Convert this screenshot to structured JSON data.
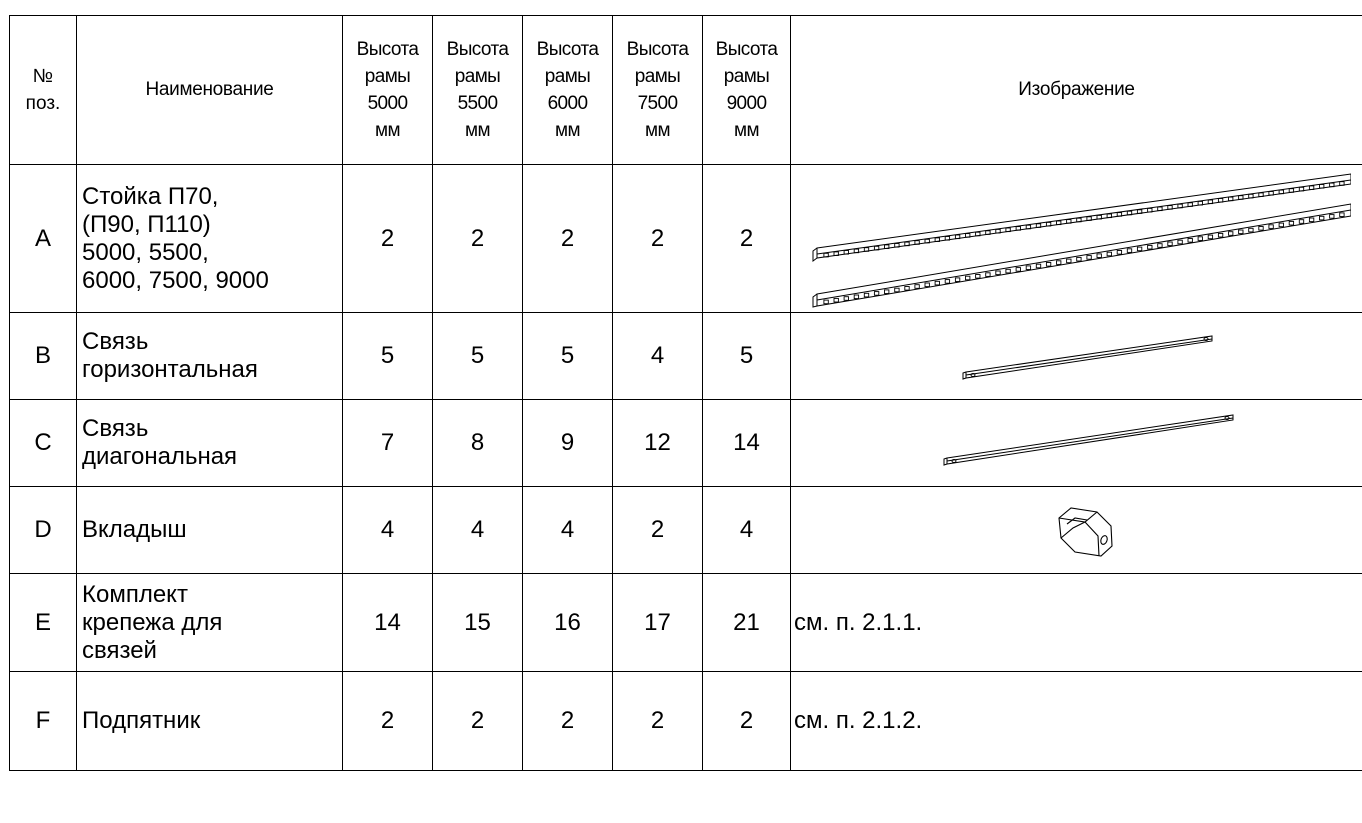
{
  "table": {
    "headers": {
      "pos": [
        "№",
        "поз."
      ],
      "name": "Наименование",
      "heights": [
        [
          "Высота",
          "рамы",
          "5000",
          "мм"
        ],
        [
          "Высота",
          "рамы",
          "5500",
          "мм"
        ],
        [
          "Высота",
          "рамы",
          "6000",
          "мм"
        ],
        [
          "Высота",
          "рамы",
          "7500",
          "мм"
        ],
        [
          "Высота",
          "рамы",
          "9000",
          "мм"
        ]
      ],
      "image": "Изображение"
    },
    "rows": [
      {
        "pos": "A",
        "name_lines": [
          "Стойка П70,",
          "(П90, П110)",
          "5000, 5500,",
          "6000, 7500, 9000"
        ],
        "qty": [
          "2",
          "2",
          "2",
          "2",
          "2"
        ],
        "image_icon": "upright-post-icon",
        "ref": ""
      },
      {
        "pos": "B",
        "name_lines": [
          "Связь",
          "горизонтальная"
        ],
        "qty": [
          "5",
          "5",
          "5",
          "4",
          "5"
        ],
        "image_icon": "horizontal-brace-icon",
        "ref": ""
      },
      {
        "pos": "C",
        "name_lines": [
          "Связь",
          "диагональная"
        ],
        "qty": [
          "7",
          "8",
          "9",
          "12",
          "14"
        ],
        "image_icon": "diagonal-brace-icon",
        "ref": ""
      },
      {
        "pos": "D",
        "name_lines": [
          "Вкладыш"
        ],
        "qty": [
          "4",
          "4",
          "4",
          "2",
          "4"
        ],
        "image_icon": "insert-icon",
        "ref": ""
      },
      {
        "pos": "E",
        "name_lines": [
          "Комплект",
          "крепежа для",
          "связей"
        ],
        "qty": [
          "14",
          "15",
          "16",
          "17",
          "21"
        ],
        "image_icon": "",
        "ref": "см. п. 2.1.1."
      },
      {
        "pos": "F",
        "name_lines": [
          "Подпятник"
        ],
        "qty": [
          "2",
          "2",
          "2",
          "2",
          "2"
        ],
        "image_icon": "",
        "ref": "см. п. 2.1.2."
      }
    ]
  }
}
